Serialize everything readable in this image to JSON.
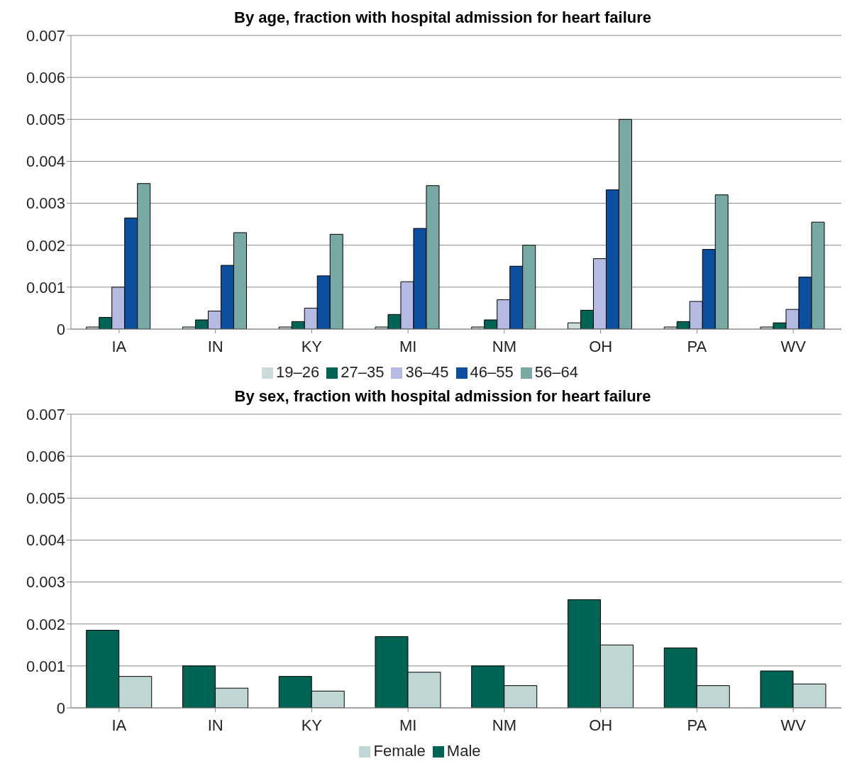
{
  "chart_data": [
    {
      "type": "bar",
      "title": "By age, fraction with hospital admission for heart failure",
      "categories": [
        "IA",
        "IN",
        "KY",
        "MI",
        "NM",
        "OH",
        "PA",
        "WV"
      ],
      "ylim": [
        0,
        0.007
      ],
      "yticks": [
        0,
        0.001,
        0.002,
        0.003,
        0.004,
        0.005,
        0.006,
        0.007
      ],
      "grid": "y",
      "legend": "bottom",
      "series": [
        {
          "name": "19–26",
          "color": "#c9dcda",
          "values": [
            5e-05,
            5e-05,
            5e-05,
            5e-05,
            5e-05,
            0.00015,
            5e-05,
            5e-05
          ]
        },
        {
          "name": "27–35",
          "color": "#006455",
          "values": [
            0.00028,
            0.00022,
            0.00018,
            0.00035,
            0.00022,
            0.00045,
            0.00018,
            0.00015
          ]
        },
        {
          "name": "36–45",
          "color": "#b4bae2",
          "values": [
            0.001,
            0.00043,
            0.0005,
            0.00113,
            0.0007,
            0.00168,
            0.00066,
            0.00047
          ]
        },
        {
          "name": "46–55",
          "color": "#0c4f9e",
          "values": [
            0.00265,
            0.00152,
            0.00127,
            0.0024,
            0.0015,
            0.00332,
            0.0019,
            0.00124
          ]
        },
        {
          "name": "56–64",
          "color": "#78a9a5",
          "values": [
            0.00347,
            0.0023,
            0.00226,
            0.00342,
            0.002,
            0.005,
            0.0032,
            0.00255
          ]
        }
      ]
    },
    {
      "type": "bar",
      "title": "By sex, fraction with hospital admission for heart failure",
      "categories": [
        "IA",
        "IN",
        "KY",
        "MI",
        "NM",
        "OH",
        "PA",
        "WV"
      ],
      "ylim": [
        0,
        0.007
      ],
      "yticks": [
        0,
        0.001,
        0.002,
        0.003,
        0.004,
        0.005,
        0.006,
        0.007
      ],
      "grid": "y",
      "legend": "bottom",
      "series": [
        {
          "name": "Male",
          "color": "#006455",
          "values": [
            0.00185,
            0.001,
            0.00075,
            0.0017,
            0.001,
            0.00258,
            0.00143,
            0.00088
          ]
        },
        {
          "name": "Female",
          "color": "#bfd6d4",
          "values": [
            0.00075,
            0.00047,
            0.0004,
            0.00085,
            0.00053,
            0.0015,
            0.00053,
            0.00057
          ]
        }
      ]
    }
  ]
}
